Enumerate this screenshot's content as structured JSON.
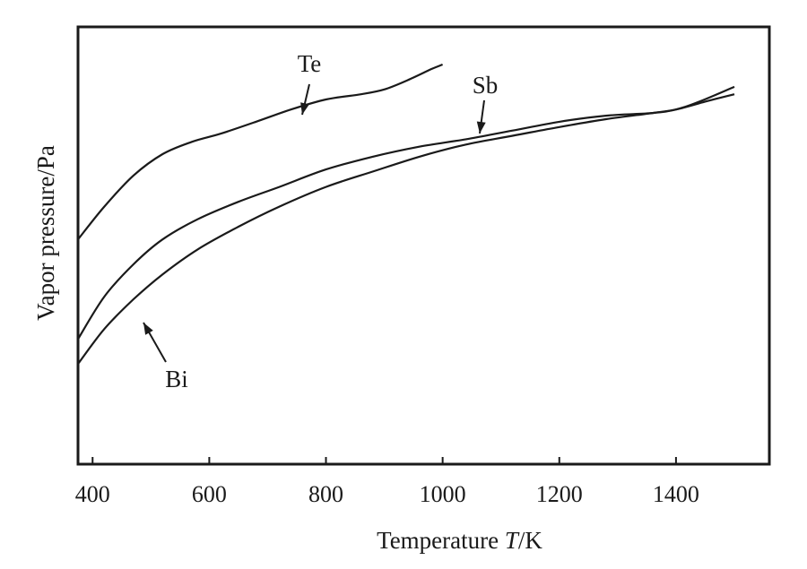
{
  "chart_data": {
    "type": "line",
    "title": "",
    "xlabel": {
      "prefix": "Temperature ",
      "var": "T",
      "suffix": "/K"
    },
    "ylabel": "Vapor pressure/Pa",
    "xlim": [
      375,
      1560
    ],
    "ylim": [
      0,
      100
    ],
    "xticks": [
      400,
      600,
      800,
      1000,
      1200,
      1400
    ],
    "yticks": [],
    "grid": false,
    "legend": "none (curves labeled with arrows)",
    "series": [
      {
        "name": "Te",
        "x": [
          375,
          420,
          470,
          520,
          570,
          620,
          680,
          740,
          800,
          860,
          900,
          940,
          980,
          1000
        ],
        "y": [
          51.4,
          58.9,
          66.0,
          70.9,
          73.7,
          75.6,
          78.3,
          81.1,
          83.4,
          84.6,
          85.7,
          87.8,
          90.3,
          91.4
        ]
      },
      {
        "name": "Sb",
        "x": [
          375,
          420,
          470,
          520,
          580,
          650,
          720,
          800,
          880,
          960,
          1040,
          1120,
          1200,
          1280,
          1360,
          1400,
          1440,
          1500
        ],
        "y": [
          28.6,
          38.3,
          45.7,
          51.4,
          56.0,
          60.0,
          63.4,
          67.4,
          70.3,
          72.6,
          74.3,
          76.3,
          78.3,
          79.7,
          80.3,
          81.1,
          82.9,
          86.3
        ]
      },
      {
        "name": "Bi",
        "x": [
          375,
          420,
          470,
          520,
          580,
          650,
          720,
          800,
          880,
          960,
          1040,
          1120,
          1200,
          1280,
          1360,
          1400,
          1450,
          1500
        ],
        "y": [
          22.9,
          30.9,
          37.7,
          43.4,
          49.1,
          54.3,
          58.9,
          63.4,
          66.9,
          70.3,
          73.1,
          75.1,
          77.1,
          78.9,
          80.3,
          81.1,
          82.9,
          84.6
        ]
      }
    ],
    "annotations": [
      {
        "text": "Te",
        "series": "Te"
      },
      {
        "text": "Sb",
        "series": "Sb"
      },
      {
        "text": "Bi",
        "series": "Bi"
      }
    ]
  }
}
